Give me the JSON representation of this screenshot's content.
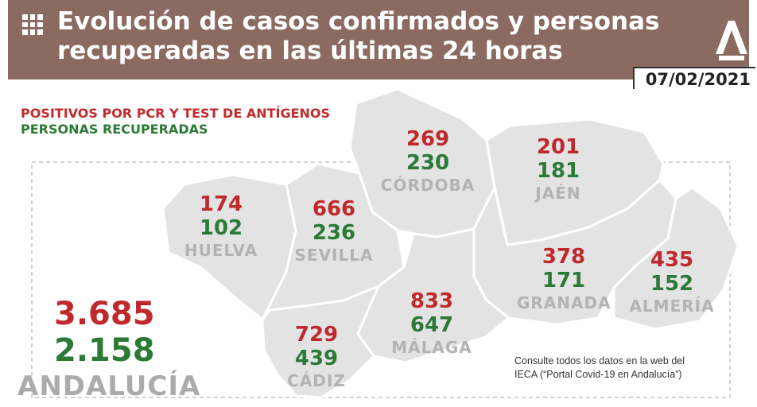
{
  "header": {
    "title_line1": "Evolución de casos confirmados y personas",
    "title_line2": "recuperadas en las últimas 24 horas",
    "date": "07/02/2021"
  },
  "legend": {
    "positives": "POSITIVOS POR PCR Y TEST DE ANTÍGENOS",
    "recovered": "PERSONAS RECUPERADAS"
  },
  "colors": {
    "header": "#8a6a61",
    "positives": "#c0292b",
    "recovered": "#2b7a35",
    "map_fill": "#e3e3e3"
  },
  "provinces": {
    "huelva": {
      "name": "HUELVA",
      "positives": "174",
      "recovered": "102"
    },
    "sevilla": {
      "name": "SEVILLA",
      "positives": "666",
      "recovered": "236"
    },
    "cordoba": {
      "name": "CÓRDOBA",
      "positives": "269",
      "recovered": "230"
    },
    "jaen": {
      "name": "JAÉN",
      "positives": "201",
      "recovered": "181"
    },
    "granada": {
      "name": "GRANADA",
      "positives": "378",
      "recovered": "171"
    },
    "almeria": {
      "name": "ALMERÍA",
      "positives": "435",
      "recovered": "152"
    },
    "malaga": {
      "name": "MÁLAGA",
      "positives": "833",
      "recovered": "647"
    },
    "cadiz": {
      "name": "CÁDIZ",
      "positives": "729",
      "recovered": "439"
    }
  },
  "total": {
    "name": "ANDALUCÍA",
    "positives": "3.685",
    "recovered": "2.158"
  },
  "note": {
    "line1": "Consulte todos los datos en la web del",
    "line2": "IECA (“Portal Covid-19 en Andalucía”)"
  }
}
